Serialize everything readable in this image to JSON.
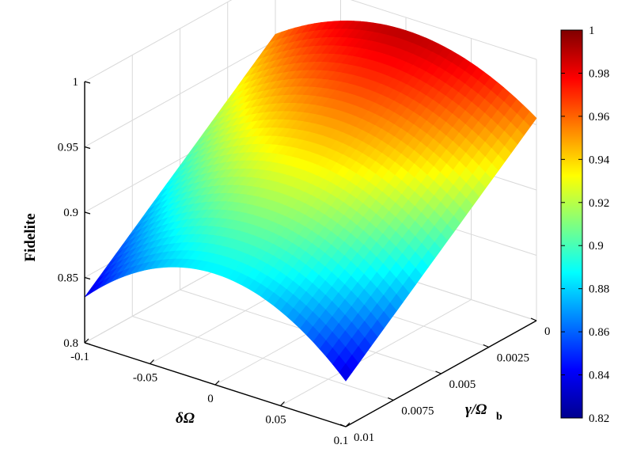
{
  "chart_data": {
    "type": "surface",
    "zlabel": "Fidelite",
    "xlabel_main": "δΩ",
    "ylabel_main": "γ/Ω",
    "ylabel_sub": "b",
    "x_range": [
      -0.1,
      0.1
    ],
    "y_range": [
      0,
      0.01
    ],
    "z_range": [
      0.8,
      1
    ],
    "x_ticks": [
      "-0.1",
      "-0.05",
      "0",
      "0.05",
      "0.1"
    ],
    "y_ticks": [
      "0",
      "0.0025",
      "0.005",
      "0.0075",
      "0.01"
    ],
    "z_ticks": [
      "0.8",
      "0.85",
      "0.9",
      "0.95",
      "1"
    ],
    "colorbar": {
      "range": [
        0.82,
        1
      ],
      "ticks": [
        "0.82",
        "0.84",
        "0.86",
        "0.88",
        "0.9",
        "0.92",
        "0.94",
        "0.96",
        "0.98",
        "1"
      ],
      "colormap": "jet"
    },
    "surface_model": {
      "fidelity_at_center_no_decay": 0.99,
      "fidelity_at_center_max_decay": 0.885,
      "fidelity_at_edge_no_decay": 0.955,
      "fidelity_at_edge_max_decay": 0.835
    },
    "grid": true
  }
}
